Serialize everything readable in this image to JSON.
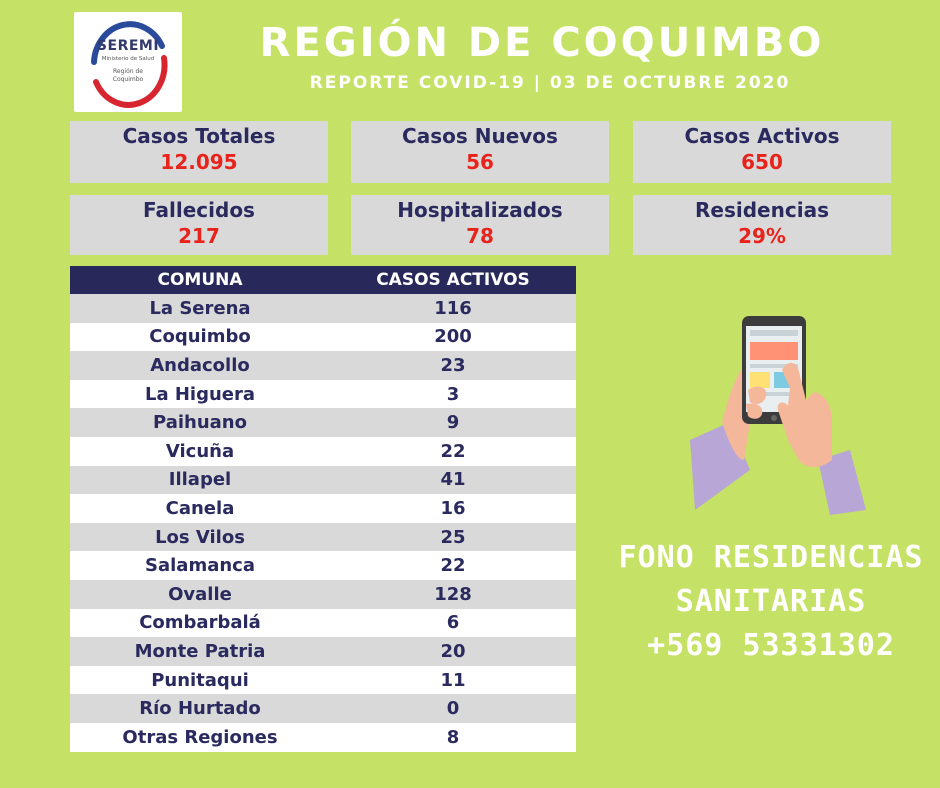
{
  "logo": {
    "title": "SEREMI",
    "line1": "Ministerio de Salud",
    "line2": "Región de",
    "line3": "Coquimbo"
  },
  "header": {
    "title": "REGIÓN DE COQUIMBO",
    "subtitle": "REPORTE COVID-19 | 03 DE OCTUBRE 2020"
  },
  "stats": [
    {
      "label": "Casos Totales",
      "value": "12.095"
    },
    {
      "label": "Casos Nuevos",
      "value": "56"
    },
    {
      "label": "Casos Activos",
      "value": "650"
    },
    {
      "label": "Fallecidos",
      "value": "217"
    },
    {
      "label": "Hospitalizados",
      "value": "78"
    },
    {
      "label": "Residencias",
      "value": "29%"
    }
  ],
  "table": {
    "headers": [
      "COMUNA",
      "CASOS ACTIVOS"
    ],
    "rows": [
      {
        "comuna": "La Serena",
        "casos": "116"
      },
      {
        "comuna": "Coquimbo",
        "casos": "200"
      },
      {
        "comuna": "Andacollo",
        "casos": "23"
      },
      {
        "comuna": "La Higuera",
        "casos": "3"
      },
      {
        "comuna": "Paihuano",
        "casos": "9"
      },
      {
        "comuna": "Vicuña",
        "casos": "22"
      },
      {
        "comuna": "Illapel",
        "casos": "41"
      },
      {
        "comuna": "Canela",
        "casos": "16"
      },
      {
        "comuna": "Los Vilos",
        "casos": "25"
      },
      {
        "comuna": "Salamanca",
        "casos": "22"
      },
      {
        "comuna": "Ovalle",
        "casos": "128"
      },
      {
        "comuna": "Combarbalá",
        "casos": "6"
      },
      {
        "comuna": "Monte Patria",
        "casos": "20"
      },
      {
        "comuna": "Punitaqui",
        "casos": "11"
      },
      {
        "comuna": "Río Hurtado",
        "casos": "0"
      },
      {
        "comuna": "Otras Regiones",
        "casos": "8"
      }
    ]
  },
  "fono": {
    "line1": "FONO RESIDENCIAS",
    "line2": "SANITARIAS",
    "line3": "+569 53331302"
  },
  "illustration": {
    "icon": "hands-holding-smartphone-icon"
  },
  "colors": {
    "background": "#c5e266",
    "navy": "#29285a",
    "value_red": "#e8231c",
    "card_gray": "#d9d9d9"
  }
}
